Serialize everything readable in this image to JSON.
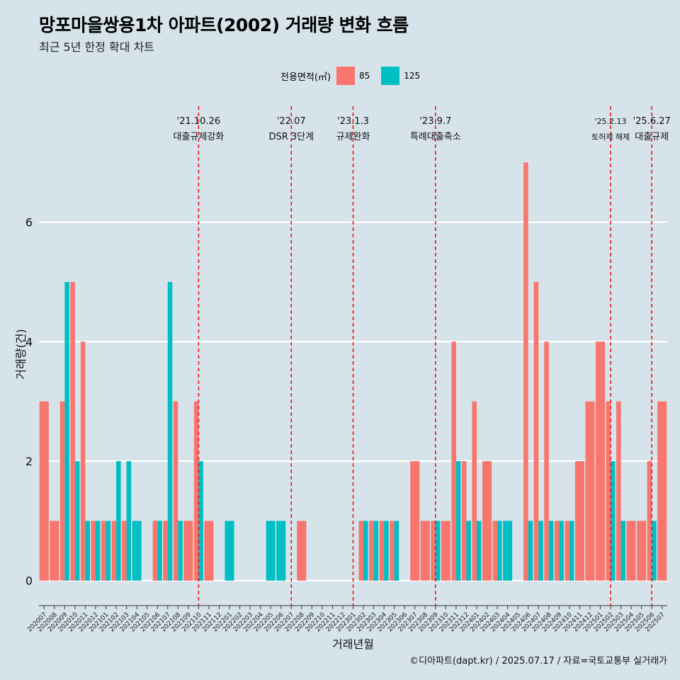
{
  "title": "망포마을쌍용1차 아파트(2002) 거래량 변화 흐름",
  "subtitle": "최근 5년 한정 확대 차트",
  "legend": {
    "title": "전용면적(㎡)",
    "items": [
      {
        "label": "85",
        "color": "#f8766d"
      },
      {
        "label": "125",
        "color": "#00bfc4"
      }
    ]
  },
  "caption": "©디아파트(dapt.kr) / 2025.07.17 / 자료=국토교통부 실거래가",
  "chart_data": {
    "type": "bar",
    "xlabel": "거래년월",
    "ylabel": "거래량(건)",
    "ylim": [
      -0.3,
      8
    ],
    "yticks": [
      0,
      2,
      4,
      6
    ],
    "categories": [
      "202007",
      "202008",
      "202009",
      "202010",
      "202011",
      "202012",
      "202101",
      "202102",
      "202103",
      "202104",
      "202105",
      "202106",
      "202107",
      "202108",
      "202109",
      "202110",
      "202111",
      "202112",
      "202201",
      "202202",
      "202203",
      "202204",
      "202205",
      "202206",
      "202207",
      "202208",
      "202209",
      "202210",
      "202211",
      "202212",
      "202301",
      "202302",
      "202303",
      "202304",
      "202305",
      "202306",
      "202307",
      "202308",
      "202309",
      "202310",
      "202311",
      "202312",
      "202401",
      "202402",
      "202403",
      "202404",
      "202405",
      "202406",
      "202407",
      "202408",
      "202409",
      "202410",
      "202411",
      "202412",
      "202501",
      "202502",
      "202503",
      "202504",
      "202505",
      "202506",
      "202507"
    ],
    "series": [
      {
        "name": "85",
        "color": "#f8766d",
        "values": [
          3,
          1,
          3,
          5,
          4,
          1,
          1,
          1,
          1,
          0,
          0,
          1,
          1,
          3,
          1,
          3,
          1,
          0,
          0,
          0,
          0,
          0,
          0,
          0,
          0,
          1,
          0,
          0,
          0,
          0,
          0,
          1,
          1,
          1,
          1,
          0,
          2,
          1,
          1,
          1,
          4,
          2,
          3,
          2,
          1,
          0,
          0,
          7,
          5,
          4,
          1,
          1,
          2,
          3,
          4,
          3,
          3,
          1,
          1,
          2,
          3
        ]
      },
      {
        "name": "125",
        "color": "#00bfc4",
        "values": [
          0,
          0,
          5,
          2,
          1,
          1,
          1,
          2,
          2,
          1,
          0,
          1,
          5,
          1,
          0,
          2,
          0,
          0,
          1,
          0,
          0,
          0,
          1,
          1,
          0,
          0,
          0,
          0,
          0,
          0,
          0,
          1,
          1,
          1,
          1,
          0,
          0,
          0,
          1,
          0,
          2,
          1,
          1,
          0,
          1,
          1,
          0,
          1,
          1,
          1,
          1,
          1,
          0,
          0,
          0,
          2,
          1,
          0,
          0,
          1,
          0
        ]
      }
    ],
    "events": [
      {
        "date": "'21.10.26",
        "label": "대출규제강화",
        "category": "202110"
      },
      {
        "date": "'22.07",
        "label": "DSR 3단계",
        "category": "202207"
      },
      {
        "date": "'23.1.3",
        "label": "규제완화",
        "category": "202301"
      },
      {
        "date": "'23.9.7",
        "label": "특례대출축소",
        "category": "202309"
      },
      {
        "date": "'25.2.13",
        "label": "토허제 해제",
        "category": "202502"
      },
      {
        "date": "'25.6.27",
        "label": "대출규제",
        "category": "202506"
      }
    ]
  }
}
